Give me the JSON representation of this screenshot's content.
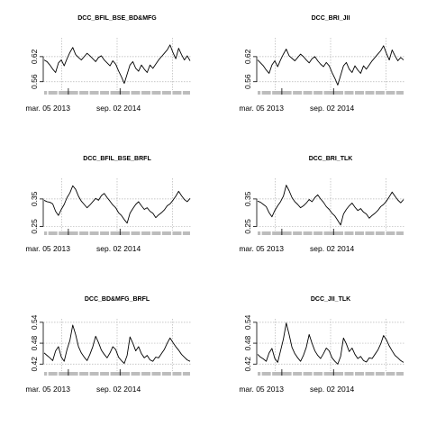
{
  "chart_data": [
    {
      "type": "line",
      "title": "DCC_BFIL_BSE_BD&MFG",
      "xlabel": "",
      "ylabel": "",
      "x_tick_labels": [
        "mar. 05 2013",
        "sep. 02 2014"
      ],
      "x_range": [
        "2012-09",
        "2015-12"
      ],
      "y_ticks": [
        "0.56",
        "0.62"
      ],
      "ylim": [
        0.54,
        0.665
      ],
      "grid": true,
      "series": [
        {
          "values": [
            0.612,
            0.608,
            0.6,
            0.59,
            0.582,
            0.605,
            0.612,
            0.598,
            0.615,
            0.63,
            0.642,
            0.625,
            0.618,
            0.612,
            0.62,
            0.628,
            0.622,
            0.615,
            0.608,
            0.618,
            0.622,
            0.612,
            0.605,
            0.598,
            0.61,
            0.602,
            0.586,
            0.572,
            0.556,
            0.578,
            0.6,
            0.608,
            0.592,
            0.585,
            0.6,
            0.59,
            0.582,
            0.6,
            0.592,
            0.602,
            0.612,
            0.62,
            0.628,
            0.636,
            0.648,
            0.63,
            0.615,
            0.64,
            0.625,
            0.612,
            0.622,
            0.61
          ]
        }
      ]
    },
    {
      "type": "line",
      "title": "DCC_BRI_JII",
      "xlabel": "",
      "ylabel": "",
      "x_tick_labels": [
        "mar. 05 2013",
        "sep. 02 2014"
      ],
      "x_range": [
        "2012-09",
        "2015-12"
      ],
      "y_ticks": [
        "0.56",
        "0.62"
      ],
      "ylim": [
        0.54,
        0.665
      ],
      "grid": true,
      "series": [
        {
          "values": [
            0.612,
            0.605,
            0.598,
            0.588,
            0.58,
            0.6,
            0.61,
            0.596,
            0.612,
            0.626,
            0.638,
            0.622,
            0.616,
            0.61,
            0.618,
            0.626,
            0.62,
            0.612,
            0.605,
            0.615,
            0.62,
            0.61,
            0.602,
            0.596,
            0.606,
            0.598,
            0.582,
            0.568,
            0.552,
            0.575,
            0.598,
            0.606,
            0.59,
            0.582,
            0.598,
            0.588,
            0.58,
            0.598,
            0.59,
            0.6,
            0.61,
            0.618,
            0.626,
            0.634,
            0.646,
            0.628,
            0.612,
            0.636,
            0.622,
            0.61,
            0.618,
            0.612
          ]
        }
      ]
    },
    {
      "type": "line",
      "title": "DCC_BFIL_BSE_BRFL",
      "xlabel": "",
      "ylabel": "",
      "x_tick_labels": [
        "mar. 05 2013",
        "sep. 02 2014"
      ],
      "x_range": [
        "2012-09",
        "2015-12"
      ],
      "y_ticks": [
        "0.25",
        "0.35"
      ],
      "ylim": [
        0.235,
        0.425
      ],
      "grid": true,
      "series": [
        {
          "values": [
            0.345,
            0.34,
            0.338,
            0.332,
            0.305,
            0.29,
            0.312,
            0.33,
            0.355,
            0.372,
            0.398,
            0.385,
            0.36,
            0.342,
            0.33,
            0.318,
            0.328,
            0.34,
            0.352,
            0.345,
            0.362,
            0.37,
            0.355,
            0.342,
            0.328,
            0.318,
            0.3,
            0.29,
            0.275,
            0.262,
            0.298,
            0.315,
            0.33,
            0.34,
            0.325,
            0.312,
            0.318,
            0.305,
            0.298,
            0.282,
            0.292,
            0.3,
            0.31,
            0.325,
            0.332,
            0.345,
            0.36,
            0.378,
            0.362,
            0.348,
            0.34,
            0.352
          ]
        }
      ]
    },
    {
      "type": "line",
      "title": "DCC_BRI_TLK",
      "xlabel": "",
      "ylabel": "",
      "x_tick_labels": [
        "mar. 05 2013",
        "sep. 02 2014"
      ],
      "x_range": [
        "2012-09",
        "2015-12"
      ],
      "y_ticks": [
        "0.25",
        "0.35"
      ],
      "ylim": [
        0.235,
        0.425
      ],
      "grid": true,
      "series": [
        {
          "values": [
            0.342,
            0.338,
            0.33,
            0.322,
            0.3,
            0.285,
            0.308,
            0.325,
            0.34,
            0.36,
            0.4,
            0.38,
            0.355,
            0.34,
            0.33,
            0.318,
            0.325,
            0.335,
            0.348,
            0.34,
            0.355,
            0.365,
            0.35,
            0.338,
            0.322,
            0.312,
            0.298,
            0.288,
            0.272,
            0.255,
            0.295,
            0.312,
            0.325,
            0.335,
            0.32,
            0.308,
            0.315,
            0.302,
            0.295,
            0.28,
            0.29,
            0.298,
            0.308,
            0.322,
            0.33,
            0.342,
            0.358,
            0.375,
            0.36,
            0.346,
            0.336,
            0.348
          ]
        }
      ]
    },
    {
      "type": "line",
      "title": "DCC_BD&MFG_BRFL",
      "xlabel": "",
      "ylabel": "",
      "x_tick_labels": [
        "mar. 05 2013",
        "sep. 02 2014"
      ],
      "x_range": [
        "2012-09",
        "2015-12"
      ],
      "y_ticks": [
        "0.42",
        "0.48",
        "0.54"
      ],
      "ylim": [
        0.4,
        0.55
      ],
      "grid": true,
      "series": [
        {
          "values": [
            0.452,
            0.445,
            0.438,
            0.43,
            0.458,
            0.47,
            0.44,
            0.428,
            0.462,
            0.488,
            0.532,
            0.505,
            0.47,
            0.452,
            0.44,
            0.43,
            0.448,
            0.47,
            0.5,
            0.482,
            0.46,
            0.448,
            0.438,
            0.452,
            0.47,
            0.462,
            0.44,
            0.43,
            0.422,
            0.445,
            0.498,
            0.48,
            0.458,
            0.47,
            0.45,
            0.438,
            0.445,
            0.432,
            0.428,
            0.44,
            0.438,
            0.45,
            0.462,
            0.48,
            0.495,
            0.482,
            0.47,
            0.46,
            0.448,
            0.44,
            0.432,
            0.428
          ]
        }
      ]
    },
    {
      "type": "line",
      "title": "DCC_JII_TLK",
      "xlabel": "",
      "ylabel": "",
      "x_tick_labels": [
        "mar. 05 2013",
        "sep. 02 2014"
      ],
      "x_range": [
        "2012-09",
        "2015-12"
      ],
      "y_ticks": [
        "0.42",
        "0.48",
        "0.54"
      ],
      "ylim": [
        0.4,
        0.55
      ],
      "grid": true,
      "series": [
        {
          "values": [
            0.448,
            0.44,
            0.435,
            0.428,
            0.452,
            0.465,
            0.436,
            0.425,
            0.458,
            0.492,
            0.538,
            0.505,
            0.468,
            0.45,
            0.438,
            0.428,
            0.445,
            0.468,
            0.505,
            0.48,
            0.458,
            0.445,
            0.436,
            0.45,
            0.466,
            0.458,
            0.438,
            0.428,
            0.42,
            0.442,
            0.495,
            0.478,
            0.456,
            0.466,
            0.448,
            0.436,
            0.442,
            0.43,
            0.426,
            0.438,
            0.436,
            0.448,
            0.46,
            0.478,
            0.502,
            0.49,
            0.472,
            0.458,
            0.445,
            0.438,
            0.43,
            0.425
          ]
        }
      ]
    }
  ]
}
